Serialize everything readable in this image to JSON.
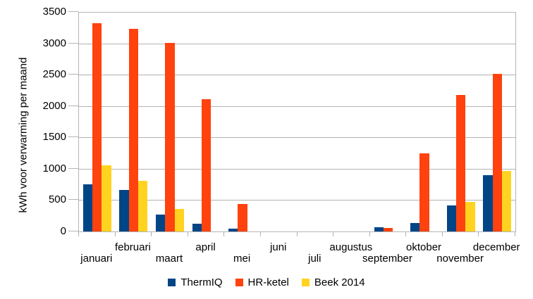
{
  "chart_data": {
    "type": "bar",
    "title": "",
    "xlabel": "",
    "ylabel": "kWh voor verwarming per maand",
    "ylim": [
      0,
      3500
    ],
    "ytick_step": 500,
    "yticks": [
      "0",
      "500",
      "1000",
      "1500",
      "2000",
      "2500",
      "3000",
      "3500"
    ],
    "grid": true,
    "legend_position": "bottom",
    "categories": [
      "januari",
      "februari",
      "maart",
      "april",
      "mei",
      "juni",
      "juli",
      "augustus",
      "september",
      "oktober",
      "november",
      "december"
    ],
    "series": [
      {
        "name": "ThermIQ",
        "color": "#004586",
        "values": [
          750,
          660,
          270,
          120,
          50,
          0,
          0,
          0,
          65,
          140,
          410,
          900
        ]
      },
      {
        "name": "HR-ketel",
        "color": "#ff420e",
        "values": [
          3320,
          3230,
          3010,
          2110,
          440,
          0,
          0,
          0,
          60,
          1250,
          2180,
          2510
        ]
      },
      {
        "name": "Beek 2014",
        "color": "#ffd320",
        "values": [
          1050,
          810,
          360,
          0,
          0,
          0,
          0,
          0,
          0,
          0,
          470,
          970
        ]
      }
    ],
    "axis_color": "#b3b3b3",
    "text_color": "#000000"
  }
}
